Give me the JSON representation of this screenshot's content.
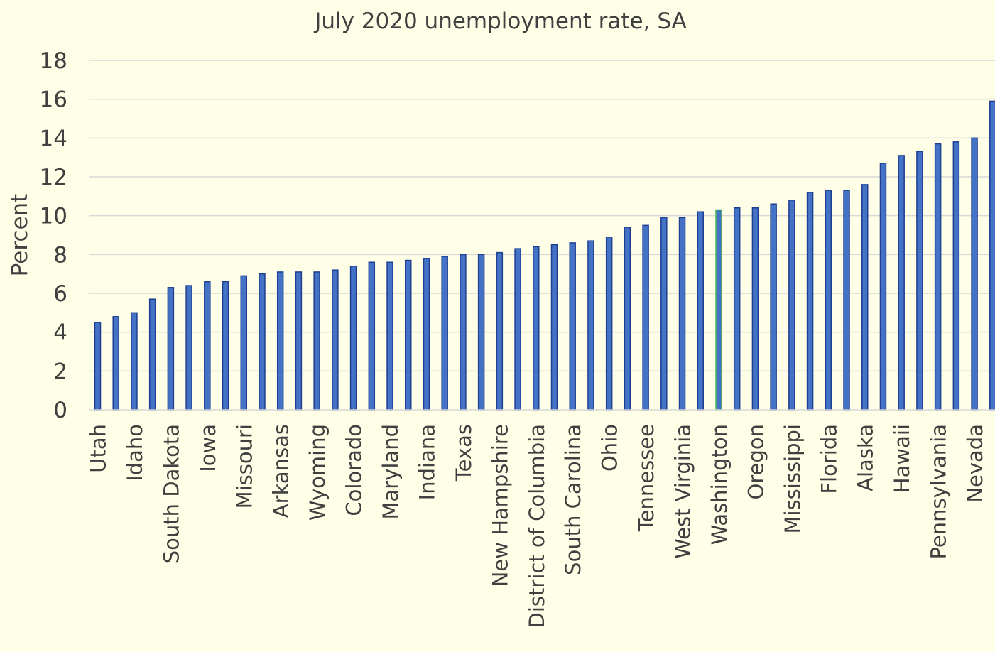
{
  "chart_data": {
    "type": "bar",
    "title": "July 2020 unemployment rate, SA",
    "xlabel": "",
    "ylabel": "Percent",
    "ylim": [
      0,
      18
    ],
    "yticks": [
      0,
      2,
      4,
      6,
      8,
      10,
      12,
      14,
      16,
      18
    ],
    "grid": true,
    "legend": "none",
    "categories": [
      "Utah",
      "",
      "Idaho",
      "",
      "South Dakota",
      "",
      "Iowa",
      "",
      "Missouri",
      "",
      "Arkansas",
      "",
      "Wyoming",
      "",
      "Colorado",
      "",
      "Maryland",
      "",
      "Indiana",
      "",
      "Texas",
      "",
      "New Hampshire",
      "",
      "District of Columbia",
      "",
      "South Carolina",
      "",
      "Ohio",
      "",
      "Tennessee",
      "",
      "West Virginia",
      "",
      "Washington",
      "",
      "Oregon",
      "",
      "Mississippi",
      "",
      "Florida",
      "",
      "Alaska",
      "",
      "Hawaii",
      "",
      "Pennsylvania",
      "",
      "Nevada",
      ""
    ],
    "values": [
      4.5,
      4.8,
      5.0,
      5.7,
      6.3,
      6.4,
      6.6,
      6.6,
      6.9,
      7.0,
      7.1,
      7.1,
      7.1,
      7.2,
      7.4,
      7.6,
      7.6,
      7.7,
      7.8,
      7.9,
      8.0,
      8.0,
      8.1,
      8.3,
      8.4,
      8.5,
      8.6,
      8.7,
      8.9,
      9.4,
      9.5,
      9.9,
      9.9,
      10.2,
      10.3,
      10.4,
      10.4,
      10.6,
      10.8,
      11.2,
      11.3,
      11.3,
      11.6,
      12.7,
      13.1,
      13.3,
      13.7,
      13.8,
      14.0,
      15.9
    ],
    "highlight": "Washington"
  },
  "colors": {
    "background": "#FFFFE8",
    "bar_fill": "#4472C4",
    "bar_stroke": "#1F3E91",
    "highlight_stroke": "#4CB85A",
    "grid": "#D9D9D9",
    "text": "#404040"
  }
}
